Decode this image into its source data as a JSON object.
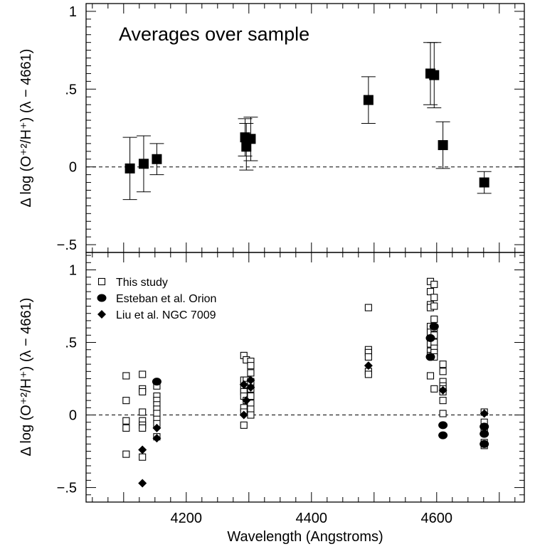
{
  "chart_data": [
    {
      "type": "scatter",
      "title": "Averages over sample",
      "ylabel": "Δ log (O⁺²/H⁺) (λ − 4661)",
      "xlim": [
        4040,
        4740
      ],
      "ylim": [
        -0.55,
        1.05
      ],
      "yticks": [
        {
          "value": 1,
          "label": "1"
        },
        {
          "value": 0.5,
          "label": ".5"
        },
        {
          "value": 0,
          "label": "0"
        },
        {
          "value": -0.5,
          "label": "−.5"
        }
      ],
      "reference_line": 0,
      "series": [
        {
          "marker": "filled-square",
          "points": [
            {
              "x": 4110,
              "y": -0.01,
              "ylo": -0.21,
              "yhi": 0.19
            },
            {
              "x": 4132,
              "y": 0.02,
              "ylo": -0.16,
              "yhi": 0.2
            },
            {
              "x": 4153,
              "y": 0.05,
              "ylo": -0.05,
              "yhi": 0.15
            },
            {
              "x": 4294,
              "y": 0.19,
              "ylo": 0.07,
              "yhi": 0.31
            },
            {
              "x": 4296,
              "y": 0.13,
              "ylo": -0.02,
              "yhi": 0.28
            },
            {
              "x": 4303,
              "y": 0.18,
              "ylo": 0.04,
              "yhi": 0.32
            },
            {
              "x": 4491,
              "y": 0.43,
              "ylo": 0.28,
              "yhi": 0.58
            },
            {
              "x": 4590,
              "y": 0.6,
              "ylo": 0.4,
              "yhi": 0.8
            },
            {
              "x": 4596,
              "y": 0.59,
              "ylo": 0.38,
              "yhi": 0.8
            },
            {
              "x": 4610,
              "y": 0.14,
              "ylo": -0.01,
              "yhi": 0.29
            },
            {
              "x": 4676,
              "y": -0.1,
              "ylo": -0.17,
              "yhi": -0.03
            }
          ]
        }
      ]
    },
    {
      "type": "scatter",
      "xlabel": "Wavelength (Angstroms)",
      "ylabel": "Δ log (O⁺²/H⁺) (λ − 4661)",
      "xlim": [
        4040,
        4740
      ],
      "ylim": [
        -0.6,
        1.12
      ],
      "xticks": [
        {
          "value": 4200,
          "label": "4200"
        },
        {
          "value": 4400,
          "label": "4400"
        },
        {
          "value": 4600,
          "label": "4600"
        }
      ],
      "yticks": [
        {
          "value": 1,
          "label": "1"
        },
        {
          "value": 0.5,
          "label": ".5"
        },
        {
          "value": 0,
          "label": "0"
        },
        {
          "value": -0.5,
          "label": "−.5"
        }
      ],
      "reference_line": 0,
      "legend_position": "top-left",
      "series": [
        {
          "name": "This study",
          "marker": "open-square",
          "points": [
            {
              "x": 4104,
              "y": 0.27
            },
            {
              "x": 4104,
              "y": 0.1
            },
            {
              "x": 4104,
              "y": -0.04
            },
            {
              "x": 4104,
              "y": -0.09
            },
            {
              "x": 4104,
              "y": -0.27
            },
            {
              "x": 4130,
              "y": 0.28
            },
            {
              "x": 4130,
              "y": 0.18
            },
            {
              "x": 4130,
              "y": 0.16
            },
            {
              "x": 4130,
              "y": 0.02
            },
            {
              "x": 4130,
              "y": -0.04
            },
            {
              "x": 4130,
              "y": -0.07
            },
            {
              "x": 4130,
              "y": -0.09
            },
            {
              "x": 4130,
              "y": -0.29
            },
            {
              "x": 4153,
              "y": 0.2
            },
            {
              "x": 4153,
              "y": 0.13
            },
            {
              "x": 4153,
              "y": 0.1
            },
            {
              "x": 4153,
              "y": 0.07
            },
            {
              "x": 4153,
              "y": 0.04
            },
            {
              "x": 4153,
              "y": 0.01
            },
            {
              "x": 4153,
              "y": -0.03
            },
            {
              "x": 4153,
              "y": -0.06
            },
            {
              "x": 4153,
              "y": -0.15
            },
            {
              "x": 4292,
              "y": 0.41
            },
            {
              "x": 4292,
              "y": 0.24
            },
            {
              "x": 4292,
              "y": 0.18
            },
            {
              "x": 4292,
              "y": 0.16
            },
            {
              "x": 4292,
              "y": 0.13
            },
            {
              "x": 4292,
              "y": 0.05
            },
            {
              "x": 4292,
              "y": 0.02
            },
            {
              "x": 4292,
              "y": -0.07
            },
            {
              "x": 4296,
              "y": 0.38
            },
            {
              "x": 4296,
              "y": 0.24
            },
            {
              "x": 4296,
              "y": 0.21
            },
            {
              "x": 4296,
              "y": 0.1
            },
            {
              "x": 4303,
              "y": 0.37
            },
            {
              "x": 4303,
              "y": 0.34
            },
            {
              "x": 4303,
              "y": 0.29
            },
            {
              "x": 4303,
              "y": 0.23
            },
            {
              "x": 4303,
              "y": 0.18
            },
            {
              "x": 4303,
              "y": 0.13
            },
            {
              "x": 4303,
              "y": 0.08
            },
            {
              "x": 4303,
              "y": 0.04
            },
            {
              "x": 4303,
              "y": 0.0
            },
            {
              "x": 4491,
              "y": 0.74
            },
            {
              "x": 4491,
              "y": 0.45
            },
            {
              "x": 4491,
              "y": 0.43
            },
            {
              "x": 4491,
              "y": 0.4
            },
            {
              "x": 4491,
              "y": 0.3
            },
            {
              "x": 4491,
              "y": 0.28
            },
            {
              "x": 4590,
              "y": 0.92
            },
            {
              "x": 4590,
              "y": 0.85
            },
            {
              "x": 4590,
              "y": 0.76
            },
            {
              "x": 4590,
              "y": 0.74
            },
            {
              "x": 4590,
              "y": 0.61
            },
            {
              "x": 4590,
              "y": 0.57
            },
            {
              "x": 4590,
              "y": 0.49
            },
            {
              "x": 4590,
              "y": 0.44
            },
            {
              "x": 4590,
              "y": 0.41
            },
            {
              "x": 4590,
              "y": 0.27
            },
            {
              "x": 4596,
              "y": 0.9
            },
            {
              "x": 4596,
              "y": 0.81
            },
            {
              "x": 4596,
              "y": 0.75
            },
            {
              "x": 4596,
              "y": 0.66
            },
            {
              "x": 4596,
              "y": 0.6
            },
            {
              "x": 4596,
              "y": 0.55
            },
            {
              "x": 4596,
              "y": 0.5
            },
            {
              "x": 4596,
              "y": 0.46
            },
            {
              "x": 4596,
              "y": 0.43
            },
            {
              "x": 4596,
              "y": 0.4
            },
            {
              "x": 4596,
              "y": 0.18
            },
            {
              "x": 4610,
              "y": 0.35
            },
            {
              "x": 4610,
              "y": 0.3
            },
            {
              "x": 4610,
              "y": 0.23
            },
            {
              "x": 4610,
              "y": 0.2
            },
            {
              "x": 4610,
              "y": 0.18
            },
            {
              "x": 4610,
              "y": 0.16
            },
            {
              "x": 4610,
              "y": 0.1
            },
            {
              "x": 4610,
              "y": 0.01
            },
            {
              "x": 4676,
              "y": 0.02
            },
            {
              "x": 4676,
              "y": -0.05
            },
            {
              "x": 4676,
              "y": -0.1
            },
            {
              "x": 4676,
              "y": -0.12
            },
            {
              "x": 4676,
              "y": -0.19
            },
            {
              "x": 4676,
              "y": -0.21
            }
          ]
        },
        {
          "name": "Esteban et al. Orion",
          "marker": "filled-circle",
          "points": [
            {
              "x": 4153,
              "y": 0.23
            },
            {
              "x": 4590,
              "y": 0.53
            },
            {
              "x": 4590,
              "y": 0.4
            },
            {
              "x": 4596,
              "y": 0.61
            },
            {
              "x": 4610,
              "y": -0.07
            },
            {
              "x": 4610,
              "y": -0.14
            },
            {
              "x": 4676,
              "y": -0.08
            },
            {
              "x": 4676,
              "y": -0.13
            },
            {
              "x": 4676,
              "y": -0.2
            }
          ]
        },
        {
          "name": "Liu et al. NGC 7009",
          "marker": "filled-diamond",
          "points": [
            {
              "x": 4130,
              "y": -0.24
            },
            {
              "x": 4130,
              "y": -0.47
            },
            {
              "x": 4153,
              "y": -0.09
            },
            {
              "x": 4153,
              "y": -0.16
            },
            {
              "x": 4292,
              "y": 0.21
            },
            {
              "x": 4292,
              "y": 0.0
            },
            {
              "x": 4296,
              "y": 0.1
            },
            {
              "x": 4303,
              "y": 0.24
            },
            {
              "x": 4303,
              "y": 0.19
            },
            {
              "x": 4491,
              "y": 0.34
            },
            {
              "x": 4610,
              "y": 0.17
            },
            {
              "x": 4676,
              "y": 0.01
            }
          ]
        }
      ]
    }
  ]
}
